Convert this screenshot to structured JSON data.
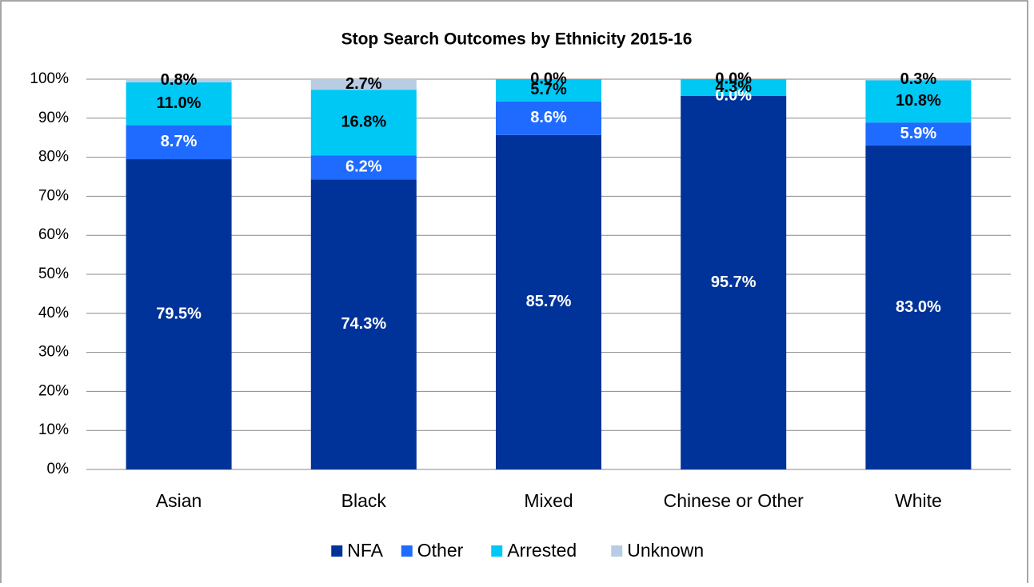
{
  "chart_data": {
    "type": "stacked_bar",
    "title": "Stop Search Outcomes by Ethnicity 2015-16",
    "categories": [
      "Asian",
      "Black",
      "Mixed",
      "Chinese or Other",
      "White"
    ],
    "series": [
      {
        "name": "NFA",
        "color": "#003399",
        "label_color": "#ffffff",
        "values": [
          79.5,
          74.3,
          85.7,
          95.7,
          83.0
        ],
        "value_labels": [
          "79.5%",
          "74.3%",
          "85.7%",
          "95.7%",
          "83.0%"
        ]
      },
      {
        "name": "Other",
        "color": "#1f6bff",
        "label_color": "#ffffff",
        "values": [
          8.7,
          6.2,
          8.6,
          0.0,
          5.9
        ],
        "value_labels": [
          "8.7%",
          "6.2%",
          "8.6%",
          "0.0%",
          "5.9%"
        ]
      },
      {
        "name": "Arrested",
        "color": "#00c8f5",
        "label_color": "#000000",
        "values": [
          11.0,
          16.8,
          5.7,
          4.3,
          10.8
        ],
        "value_labels": [
          "11.0%",
          "16.8%",
          "5.7%",
          "4.3%",
          "10.8%"
        ]
      },
      {
        "name": "Unknown",
        "color": "#b8cce4",
        "label_color": "#000000",
        "values": [
          0.8,
          2.7,
          0.0,
          0.0,
          0.3
        ],
        "value_labels": [
          "0.8%",
          "2.7%",
          "0.0%",
          "0.0%",
          "0.3%"
        ]
      }
    ],
    "ylim": [
      0,
      100
    ],
    "yticks": [
      {
        "value": 0,
        "label": "0%"
      },
      {
        "value": 10,
        "label": "10%"
      },
      {
        "value": 20,
        "label": "20%"
      },
      {
        "value": 30,
        "label": "30%"
      },
      {
        "value": 40,
        "label": "40%"
      },
      {
        "value": 50,
        "label": "50%"
      },
      {
        "value": 60,
        "label": "60%"
      },
      {
        "value": 70,
        "label": "70%"
      },
      {
        "value": 80,
        "label": "80%"
      },
      {
        "value": 90,
        "label": "90%"
      },
      {
        "value": 100,
        "label": "100%"
      }
    ],
    "grid": true,
    "legend": "bottom"
  }
}
